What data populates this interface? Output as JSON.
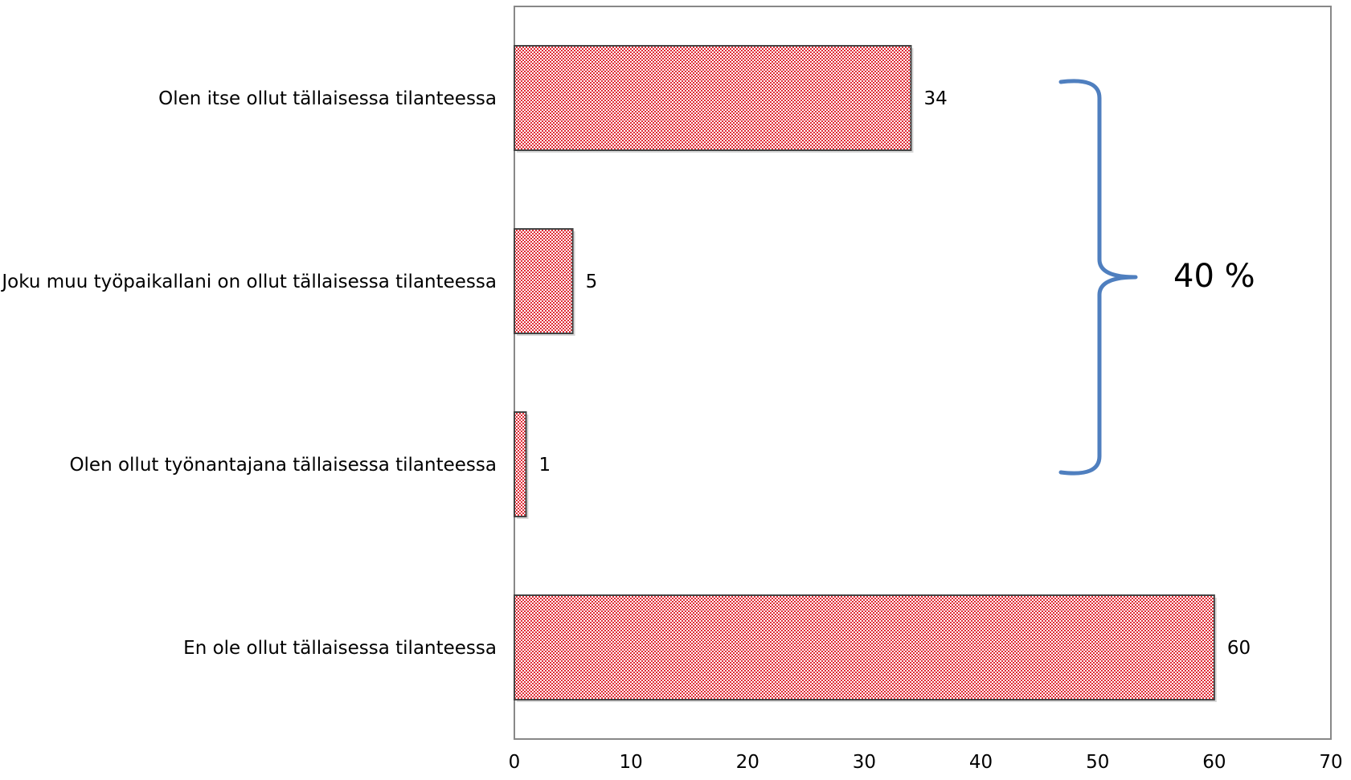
{
  "chart_data": {
    "type": "bar",
    "orientation": "horizontal",
    "categories": [
      "Olen itse ollut tällaisessa tilanteessa",
      "Joku muu työpaikallani on ollut tällaisessa tilanteessa",
      "Olen ollut työnantajana tällaisessa tilanteessa",
      "En ole ollut tällaisessa tilanteessa"
    ],
    "values": [
      34,
      5,
      1,
      60
    ],
    "xlim": [
      0,
      70
    ],
    "xticks": [
      "0",
      "10",
      "20",
      "30",
      "40",
      "50",
      "60",
      "70"
    ],
    "grid": false,
    "legend": "none",
    "title": "",
    "xlabel": "",
    "ylabel": "",
    "bar_color": "#e8303a",
    "bar_pattern": "checkered",
    "annotation": {
      "text": "40 %",
      "shape": "right curly bracket",
      "color": "#4f7fbf",
      "spans_categories": [
        0,
        1,
        2
      ]
    }
  }
}
